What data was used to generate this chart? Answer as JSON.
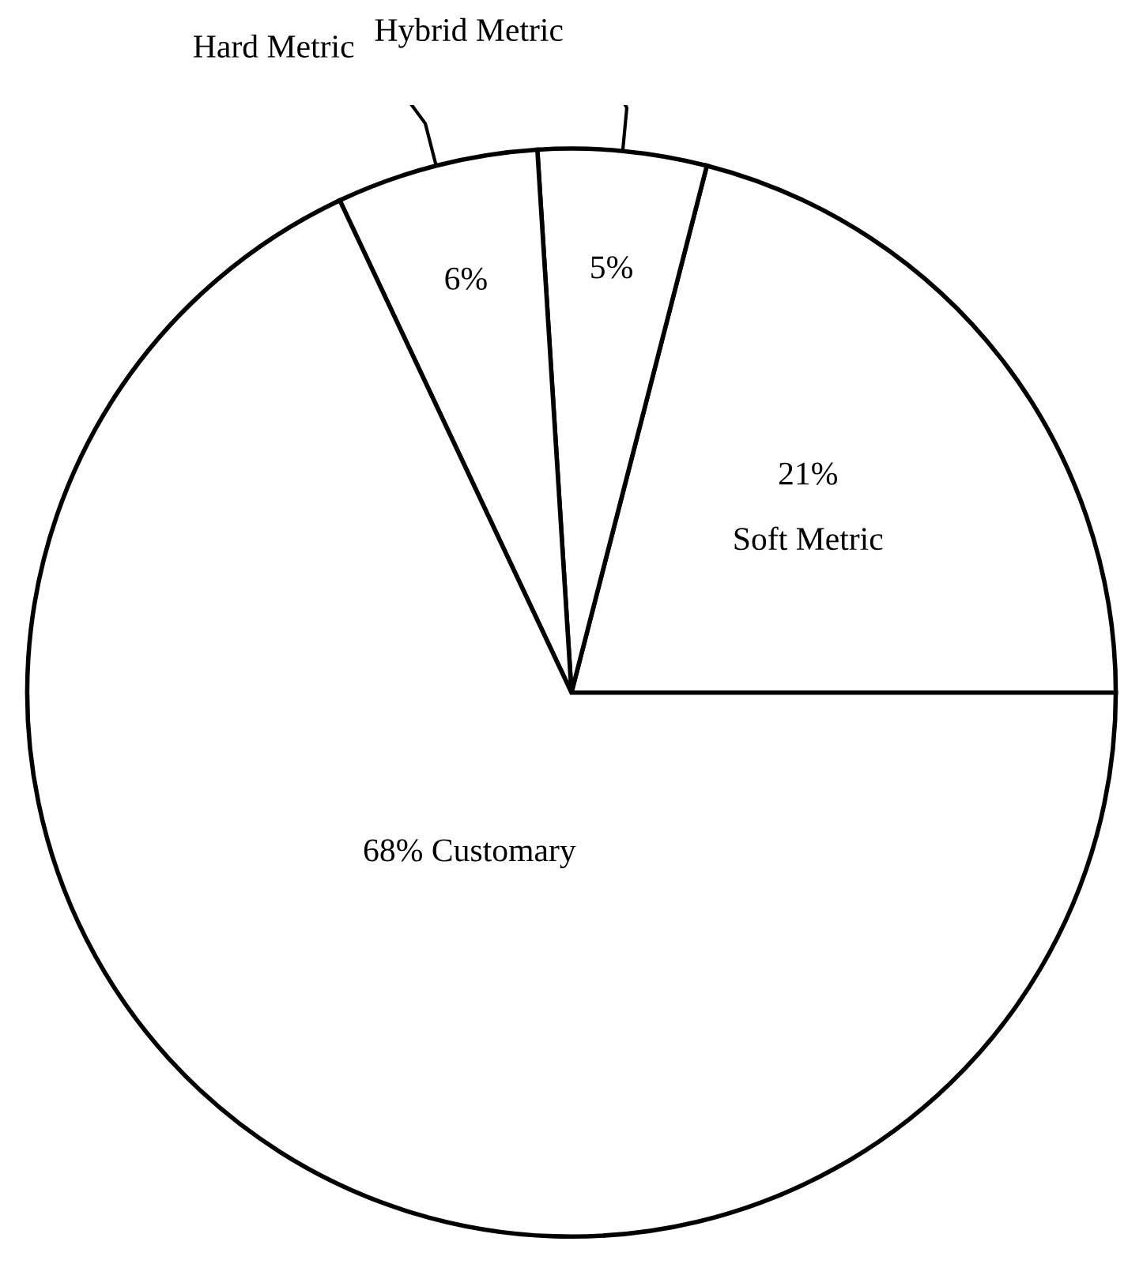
{
  "chart_data": {
    "type": "pie",
    "categories": [
      "Soft Metric",
      "Hybrid Metric",
      "Hard Metric",
      "Customary"
    ],
    "values": [
      21,
      5,
      6,
      68
    ],
    "colors": [
      "#ffffff",
      "#ffffff",
      "#ffffff",
      "#ffffff"
    ],
    "value_labels": [
      "21%",
      "5%",
      "6%",
      "68%"
    ],
    "legend": false
  }
}
